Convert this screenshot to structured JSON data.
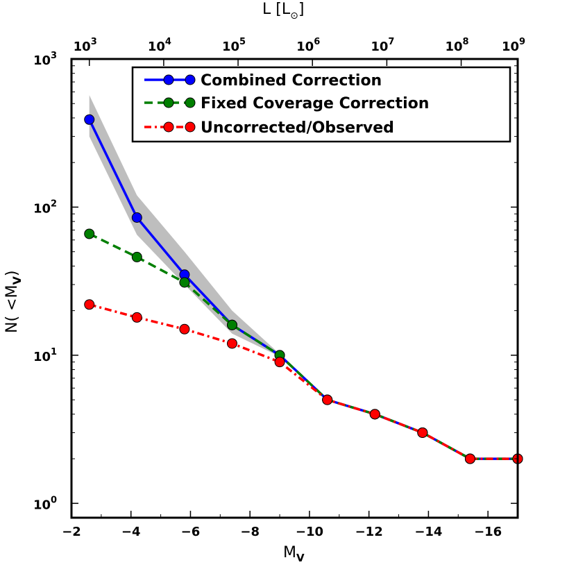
{
  "chart_data": {
    "type": "line",
    "xlabel": "M",
    "xlabel_sub": "V",
    "ylabel": "N( <M",
    "ylabel_sub": "V",
    "ylabel_close": ")",
    "top_xlabel": "L [L",
    "top_xlabel_symbol": "⊙",
    "top_xlabel_close": "]",
    "xlim": [
      -2,
      -17
    ],
    "ylim": [
      0.8,
      1000
    ],
    "yscale": "log",
    "x_ticks": [
      {
        "value": -2,
        "label": "−2"
      },
      {
        "value": -4,
        "label": "−4"
      },
      {
        "value": -6,
        "label": "−6"
      },
      {
        "value": -8,
        "label": "−8"
      },
      {
        "value": -10,
        "label": "−10"
      },
      {
        "value": -12,
        "label": "−12"
      },
      {
        "value": -14,
        "label": "−14"
      },
      {
        "value": -16,
        "label": "−16"
      }
    ],
    "y_ticks": [
      {
        "value": 1,
        "base": "10",
        "exp": "0"
      },
      {
        "value": 10,
        "base": "10",
        "exp": "1"
      },
      {
        "value": 100,
        "base": "10",
        "exp": "2"
      },
      {
        "value": 1000,
        "base": "10",
        "exp": "3"
      }
    ],
    "top_ticks": [
      {
        "value": -2.6,
        "base": "10",
        "exp": "3"
      },
      {
        "value": -5.1,
        "base": "10",
        "exp": "4"
      },
      {
        "value": -7.6,
        "base": "10",
        "exp": "5"
      },
      {
        "value": -10.1,
        "base": "10",
        "exp": "6"
      },
      {
        "value": -12.6,
        "base": "10",
        "exp": "7"
      },
      {
        "value": -15.1,
        "base": "10",
        "exp": "8"
      },
      {
        "value": -17.0,
        "base": "10",
        "exp": "9"
      }
    ],
    "x": [
      -2.6,
      -4.2,
      -5.8,
      -7.4,
      -9.0,
      -10.6,
      -12.2,
      -13.8,
      -15.4,
      -17.0
    ],
    "series": [
      {
        "name": "Combined Correction",
        "color": "#0000ff",
        "style": "solid",
        "values": [
          390,
          85,
          35,
          16,
          10,
          5,
          4,
          3,
          2,
          2
        ]
      },
      {
        "name": "Fixed Coverage Correction",
        "color": "#007f00",
        "style": "dashed",
        "values": [
          66,
          46,
          31,
          16,
          10,
          5,
          4,
          3,
          2,
          2
        ]
      },
      {
        "name": "Uncorrected/Observed",
        "color": "#ff0000",
        "style": "dashdot",
        "values": [
          22,
          18,
          15,
          12,
          9,
          5,
          4,
          3,
          2,
          2
        ]
      }
    ],
    "band": {
      "color": "#bebebe",
      "x": [
        -2.6,
        -4.2,
        -5.8,
        -7.4,
        -9.0
      ],
      "upper": [
        570,
        120,
        50,
        20,
        10.2
      ],
      "lower": [
        300,
        65,
        30,
        14,
        9.8
      ]
    },
    "legend_position": "top-right"
  }
}
